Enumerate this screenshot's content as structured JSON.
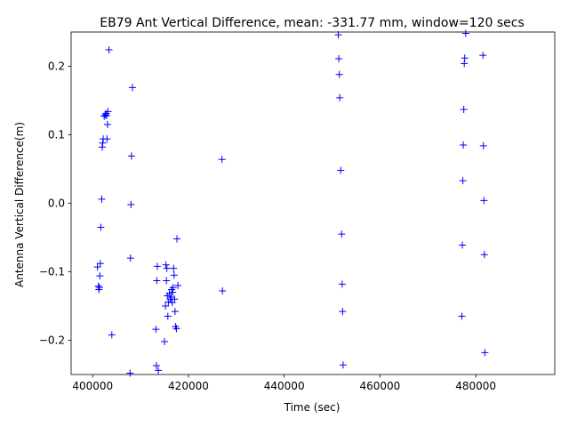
{
  "chart_data": {
    "type": "scatter",
    "title": "EB79 Ant Vertical Difference, mean: -331.77 mm, window=120 secs",
    "xlabel": "Time (sec)",
    "ylabel": "Antenna Vertical Difference(m)",
    "xlim": [
      395500,
      496500
    ],
    "ylim": [
      -0.25,
      0.25
    ],
    "xticks": [
      400000,
      420000,
      440000,
      460000,
      480000
    ],
    "xtick_labels": [
      "400000",
      "420000",
      "440000",
      "460000",
      "480000"
    ],
    "yticks": [
      -0.2,
      -0.1,
      0.0,
      0.1,
      0.2
    ],
    "ytick_labels": [
      "−0.2",
      "−0.1",
      "0.0",
      "0.1",
      "0.2"
    ],
    "grid": false,
    "marker": "+",
    "color": "#0000ff",
    "series": [
      {
        "points": [
          [
            401000,
            -0.093
          ],
          [
            401200,
            -0.121
          ],
          [
            401300,
            -0.126
          ],
          [
            401400,
            -0.123
          ],
          [
            401500,
            -0.106
          ],
          [
            401600,
            -0.088
          ],
          [
            401700,
            -0.035
          ],
          [
            401900,
            0.006
          ],
          [
            402000,
            0.082
          ],
          [
            402100,
            0.088
          ],
          [
            402200,
            0.094
          ],
          [
            402400,
            0.127
          ],
          [
            402600,
            0.129
          ],
          [
            402800,
            0.131
          ],
          [
            402900,
            0.128
          ],
          [
            403000,
            0.094
          ],
          [
            403100,
            0.115
          ],
          [
            403200,
            0.134
          ],
          [
            403400,
            0.224
          ],
          [
            404000,
            -0.192
          ],
          [
            407800,
            -0.248
          ],
          [
            407900,
            -0.08
          ],
          [
            408000,
            -0.002
          ],
          [
            408100,
            0.069
          ],
          [
            408300,
            0.169
          ],
          [
            413200,
            -0.184
          ],
          [
            413300,
            -0.237
          ],
          [
            413400,
            -0.113
          ],
          [
            413500,
            -0.092
          ],
          [
            413700,
            -0.244
          ],
          [
            415000,
            -0.202
          ],
          [
            415200,
            -0.15
          ],
          [
            415300,
            -0.09
          ],
          [
            415400,
            -0.113
          ],
          [
            415500,
            -0.095
          ],
          [
            415600,
            -0.135
          ],
          [
            415700,
            -0.165
          ],
          [
            415800,
            -0.144
          ],
          [
            416000,
            -0.132
          ],
          [
            416200,
            -0.14
          ],
          [
            416400,
            -0.137
          ],
          [
            416500,
            -0.126
          ],
          [
            416600,
            -0.145
          ],
          [
            416700,
            -0.13
          ],
          [
            416800,
            -0.123
          ],
          [
            416900,
            -0.095
          ],
          [
            417000,
            -0.105
          ],
          [
            417100,
            -0.14
          ],
          [
            417200,
            -0.158
          ],
          [
            417300,
            -0.18
          ],
          [
            417500,
            -0.183
          ],
          [
            417600,
            -0.052
          ],
          [
            417800,
            -0.12
          ],
          [
            427000,
            0.064
          ],
          [
            427100,
            -0.128
          ],
          [
            451300,
            0.246
          ],
          [
            451400,
            0.211
          ],
          [
            451500,
            0.188
          ],
          [
            451600,
            0.154
          ],
          [
            451800,
            0.048
          ],
          [
            452000,
            -0.045
          ],
          [
            452100,
            -0.118
          ],
          [
            452200,
            -0.158
          ],
          [
            452300,
            -0.236
          ],
          [
            477100,
            -0.165
          ],
          [
            477200,
            -0.061
          ],
          [
            477300,
            0.033
          ],
          [
            477400,
            0.085
          ],
          [
            477500,
            0.137
          ],
          [
            477600,
            0.204
          ],
          [
            477700,
            0.212
          ],
          [
            477900,
            0.248
          ],
          [
            481500,
            0.216
          ],
          [
            481600,
            0.084
          ],
          [
            481700,
            0.004
          ],
          [
            481800,
            -0.075
          ],
          [
            481900,
            -0.218
          ]
        ]
      }
    ]
  }
}
